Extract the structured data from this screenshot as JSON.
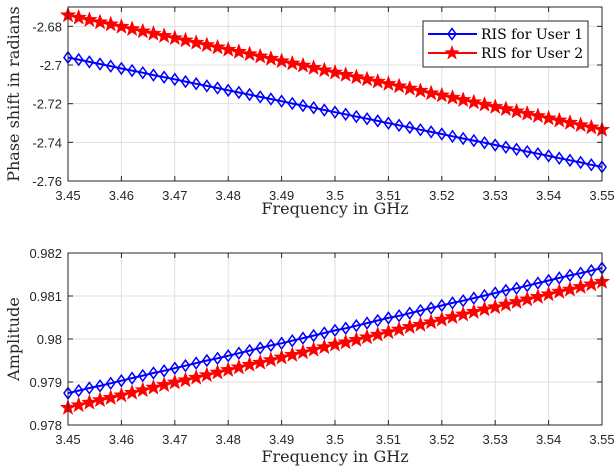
{
  "chart_data": [
    {
      "type": "line",
      "xlabel": "Frequency in GHz",
      "ylabel": "Phase shift in radians",
      "xlim": [
        3.45,
        3.55
      ],
      "ylim": [
        -2.76,
        -2.67
      ],
      "grid": true,
      "legend": "top-right",
      "xticks": [
        "3.45",
        "3.46",
        "3.47",
        "3.48",
        "3.49",
        "3.5",
        "3.51",
        "3.52",
        "3.53",
        "3.54",
        "3.55"
      ],
      "yticks": [
        "-2.76",
        "-2.74",
        "-2.72",
        "-2.7",
        "-2.68"
      ],
      "x": [
        3.45,
        3.452,
        3.454,
        3.456,
        3.458,
        3.46,
        3.462,
        3.464,
        3.466,
        3.468,
        3.47,
        3.472,
        3.474,
        3.476,
        3.478,
        3.48,
        3.482,
        3.484,
        3.486,
        3.488,
        3.49,
        3.492,
        3.494,
        3.496,
        3.498,
        3.5,
        3.502,
        3.504,
        3.506,
        3.508,
        3.51,
        3.512,
        3.514,
        3.516,
        3.518,
        3.52,
        3.522,
        3.524,
        3.526,
        3.528,
        3.53,
        3.532,
        3.534,
        3.536,
        3.538,
        3.54,
        3.542,
        3.544,
        3.546,
        3.548,
        3.55
      ],
      "series": [
        {
          "name": "RIS for User 1",
          "color": "#0000ff",
          "marker": "diamond",
          "values": [
            -2.6961,
            -2.6972,
            -2.6984,
            -2.6995,
            -2.7006,
            -2.7018,
            -2.7029,
            -2.704,
            -2.7052,
            -2.7063,
            -2.7074,
            -2.7086,
            -2.7097,
            -2.7108,
            -2.7119,
            -2.7131,
            -2.7142,
            -2.7153,
            -2.7165,
            -2.7176,
            -2.7187,
            -2.7199,
            -2.721,
            -2.7221,
            -2.7233,
            -2.7244,
            -2.7255,
            -2.7267,
            -2.7278,
            -2.7289,
            -2.7301,
            -2.7312,
            -2.7323,
            -2.7335,
            -2.7346,
            -2.7357,
            -2.7369,
            -2.738,
            -2.7391,
            -2.7402,
            -2.7414,
            -2.7425,
            -2.7436,
            -2.7448,
            -2.7459,
            -2.747,
            -2.7482,
            -2.7493,
            -2.7504,
            -2.7516,
            -2.7527
          ]
        },
        {
          "name": "RIS for User 2",
          "color": "#ff0000",
          "marker": "star",
          "values": [
            -2.6743,
            -2.6755,
            -2.6767,
            -2.6779,
            -2.679,
            -2.6802,
            -2.6814,
            -2.6826,
            -2.6838,
            -2.685,
            -2.6861,
            -2.6873,
            -2.6885,
            -2.6897,
            -2.6909,
            -2.6921,
            -2.6932,
            -2.6944,
            -2.6956,
            -2.6968,
            -2.698,
            -2.6992,
            -2.7003,
            -2.7015,
            -2.7027,
            -2.7039,
            -2.7051,
            -2.7063,
            -2.7074,
            -2.7086,
            -2.7098,
            -2.711,
            -2.7122,
            -2.7134,
            -2.7146,
            -2.7157,
            -2.7169,
            -2.7181,
            -2.7193,
            -2.7205,
            -2.7217,
            -2.7228,
            -2.724,
            -2.7252,
            -2.7264,
            -2.7276,
            -2.7287,
            -2.7299,
            -2.7311,
            -2.7323,
            -2.7335
          ]
        }
      ]
    },
    {
      "type": "line",
      "xlabel": "Frequency in GHz",
      "ylabel": "Amplitude",
      "xlim": [
        3.45,
        3.55
      ],
      "ylim": [
        0.978,
        0.982
      ],
      "grid": true,
      "xticks": [
        "3.45",
        "3.46",
        "3.47",
        "3.48",
        "3.49",
        "3.5",
        "3.51",
        "3.52",
        "3.53",
        "3.54",
        "3.55"
      ],
      "yticks": [
        "0.978",
        "0.979",
        "0.98",
        "0.981",
        "0.982"
      ],
      "x": [
        3.45,
        3.452,
        3.454,
        3.456,
        3.458,
        3.46,
        3.462,
        3.464,
        3.466,
        3.468,
        3.47,
        3.472,
        3.474,
        3.476,
        3.478,
        3.48,
        3.482,
        3.484,
        3.486,
        3.488,
        3.49,
        3.492,
        3.494,
        3.496,
        3.498,
        3.5,
        3.502,
        3.504,
        3.506,
        3.508,
        3.51,
        3.512,
        3.514,
        3.516,
        3.518,
        3.52,
        3.522,
        3.524,
        3.526,
        3.528,
        3.53,
        3.532,
        3.534,
        3.536,
        3.538,
        3.54,
        3.542,
        3.544,
        3.546,
        3.548,
        3.55
      ],
      "series": [
        {
          "color": "#0000ff",
          "marker": "diamond",
          "values": [
            0.97874,
            0.9788,
            0.97886,
            0.97891,
            0.97897,
            0.97903,
            0.97909,
            0.97915,
            0.97921,
            0.97926,
            0.97932,
            0.97938,
            0.97944,
            0.9795,
            0.97955,
            0.97961,
            0.97967,
            0.97973,
            0.97979,
            0.97985,
            0.9799,
            0.97996,
            0.98002,
            0.98008,
            0.98014,
            0.9802,
            0.98025,
            0.98031,
            0.98037,
            0.98043,
            0.98049,
            0.98054,
            0.9806,
            0.98066,
            0.98072,
            0.98078,
            0.98084,
            0.98089,
            0.98095,
            0.98101,
            0.98107,
            0.98113,
            0.98118,
            0.98124,
            0.9813,
            0.98136,
            0.98142,
            0.98148,
            0.98153,
            0.98159,
            0.98165
          ]
        },
        {
          "color": "#ff0000",
          "marker": "star",
          "values": [
            0.9784,
            0.97846,
            0.97852,
            0.97858,
            0.97863,
            0.97869,
            0.97875,
            0.97881,
            0.97887,
            0.97893,
            0.97899,
            0.97904,
            0.9791,
            0.97916,
            0.97922,
            0.97928,
            0.97934,
            0.9794,
            0.97945,
            0.97951,
            0.97957,
            0.97963,
            0.97969,
            0.97975,
            0.97981,
            0.97987,
            0.97992,
            0.97998,
            0.98004,
            0.9801,
            0.98016,
            0.98022,
            0.98028,
            0.98033,
            0.98039,
            0.98045,
            0.98051,
            0.98057,
            0.98063,
            0.98069,
            0.98074,
            0.9808,
            0.98086,
            0.98092,
            0.98098,
            0.98104,
            0.9811,
            0.98115,
            0.98121,
            0.98127,
            0.98133
          ]
        }
      ]
    }
  ]
}
